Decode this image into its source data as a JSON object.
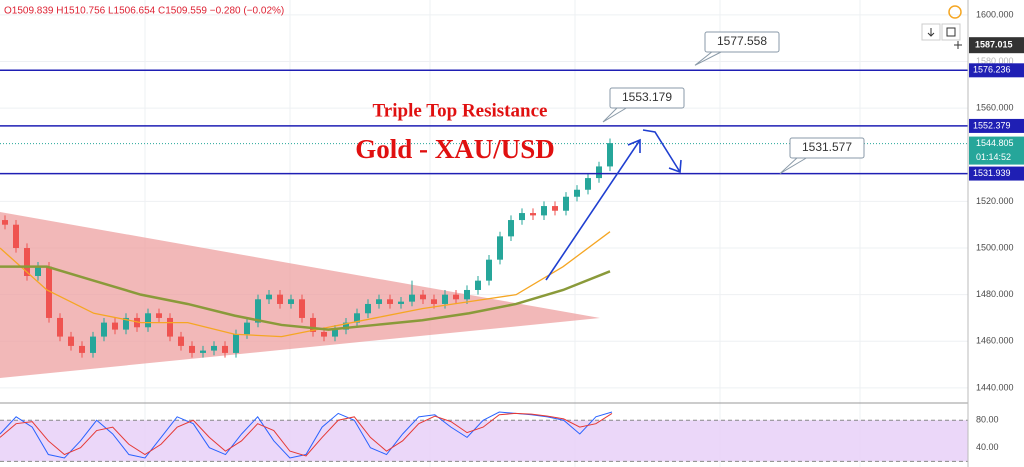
{
  "header": {
    "ohlc": "O1509.839 H1510.756 L1506.654 C1509.559 −0.280 (−0.02%)"
  },
  "chart_data": [
    {
      "type": "candlestick",
      "title": "Gold - XAU/USD",
      "annotation": "Triple Top Resistance",
      "open": [
        1512,
        1510,
        1500,
        1488,
        1492,
        1470,
        1462,
        1458,
        1455,
        1462,
        1468,
        1465,
        1470,
        1466,
        1472,
        1470,
        1462,
        1458,
        1455,
        1456,
        1458,
        1455,
        1463,
        1468,
        1478,
        1480,
        1476,
        1478,
        1470,
        1464,
        1462,
        1465,
        1468,
        1472,
        1476,
        1478,
        1476,
        1477,
        1480,
        1478,
        1476,
        1480,
        1478,
        1482,
        1486,
        1495,
        1505,
        1512,
        1515,
        1514,
        1518,
        1516,
        1522,
        1525,
        1530,
        1535
      ],
      "high": [
        1514,
        1512,
        1502,
        1494,
        1494,
        1472,
        1464,
        1460,
        1464,
        1470,
        1470,
        1472,
        1472,
        1474,
        1474,
        1472,
        1464,
        1460,
        1458,
        1460,
        1460,
        1465,
        1470,
        1480,
        1482,
        1482,
        1480,
        1480,
        1472,
        1466,
        1467,
        1470,
        1474,
        1478,
        1480,
        1480,
        1479,
        1486,
        1482,
        1480,
        1482,
        1482,
        1484,
        1488,
        1497,
        1507,
        1514,
        1517,
        1517,
        1520,
        1520,
        1524,
        1527,
        1532,
        1537,
        1547
      ],
      "low": [
        1508,
        1498,
        1486,
        1486,
        1468,
        1460,
        1456,
        1453,
        1453,
        1460,
        1463,
        1463,
        1464,
        1464,
        1468,
        1460,
        1456,
        1453,
        1453,
        1454,
        1453,
        1453,
        1461,
        1466,
        1476,
        1474,
        1474,
        1468,
        1462,
        1460,
        1460,
        1463,
        1466,
        1470,
        1474,
        1474,
        1474,
        1475,
        1476,
        1474,
        1474,
        1476,
        1476,
        1480,
        1484,
        1493,
        1503,
        1510,
        1512,
        1512,
        1514,
        1514,
        1520,
        1523,
        1528,
        1533
      ],
      "close": [
        1510,
        1500,
        1488,
        1492,
        1470,
        1462,
        1458,
        1455,
        1462,
        1468,
        1465,
        1470,
        1466,
        1472,
        1470,
        1462,
        1458,
        1455,
        1456,
        1458,
        1455,
        1463,
        1468,
        1478,
        1480,
        1476,
        1478,
        1470,
        1464,
        1462,
        1465,
        1468,
        1472,
        1476,
        1478,
        1476,
        1477,
        1480,
        1478,
        1476,
        1480,
        1478,
        1482,
        1486,
        1495,
        1505,
        1512,
        1515,
        1514,
        1518,
        1516,
        1522,
        1525,
        1530,
        1535,
        1545
      ],
      "up_color": "#26a69a",
      "down_color": "#ef5350",
      "moving_averages": [
        {
          "color": "#f5a623",
          "values": [
            1500,
            1482,
            1472,
            1468,
            1468,
            1463,
            1462,
            1466,
            1470,
            1474,
            1477,
            1480,
            1492,
            1507
          ]
        },
        {
          "color": "#8a9a3a",
          "values": [
            1492,
            1492,
            1486,
            1480,
            1476,
            1471,
            1467,
            1465,
            1467,
            1469,
            1472,
            1476,
            1482,
            1490
          ]
        }
      ],
      "levels": [
        {
          "value": 1576.236,
          "color": "#1f1fb4"
        },
        {
          "value": 1552.379,
          "color": "#1f1fb4"
        },
        {
          "value": 1531.939,
          "color": "#1f1fb4"
        }
      ],
      "callouts": [
        "1577.558",
        "1553.179",
        "1531.577"
      ],
      "last_price": 1544.805,
      "countdown": "01:14:52",
      "crosshair_price": 1587.015,
      "ylim": [
        1434.8,
        1606.4
      ],
      "yticks": [
        {
          "value": 1440,
          "label": "1440.000"
        },
        {
          "value": 1460,
          "label": "1460.000"
        },
        {
          "value": 1480,
          "label": "1480.000"
        },
        {
          "value": 1500,
          "label": "1500.000"
        },
        {
          "value": 1520,
          "label": "1520.000"
        },
        {
          "value": 1560,
          "label": "1560.000"
        },
        {
          "value": 1580,
          "label": "1580.000"
        },
        {
          "value": 1600,
          "label": "1600.000"
        }
      ],
      "grid": true
    },
    {
      "type": "line",
      "series": [
        {
          "color": "#2962ff",
          "values": [
            60,
            85,
            70,
            30,
            25,
            50,
            80,
            60,
            30,
            25,
            55,
            85,
            75,
            40,
            30,
            60,
            85,
            50,
            25,
            30,
            70,
            90,
            80,
            40,
            30,
            60,
            85,
            88,
            70,
            55,
            80,
            92,
            90,
            88,
            85,
            80,
            60,
            85,
            92
          ]
        },
        {
          "color": "#e53935",
          "values": [
            55,
            75,
            78,
            50,
            30,
            40,
            65,
            70,
            45,
            30,
            45,
            70,
            80,
            55,
            35,
            50,
            75,
            65,
            35,
            28,
            55,
            80,
            85,
            55,
            35,
            50,
            75,
            86,
            78,
            62,
            70,
            88,
            90,
            89,
            86,
            82,
            70,
            75,
            90
          ]
        }
      ],
      "band": [
        20,
        80
      ],
      "band_color": "#e6cdf7",
      "ylim": [
        11.85,
        103.7
      ],
      "yticks": [
        {
          "value": 40,
          "label": "40.00"
        },
        {
          "value": 80,
          "label": "80.00"
        }
      ]
    }
  ]
}
